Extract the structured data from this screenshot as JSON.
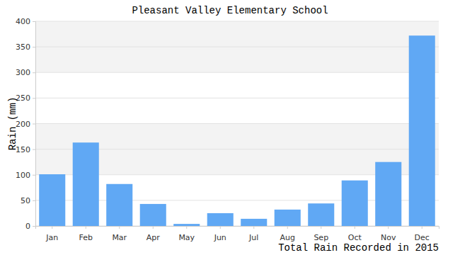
{
  "chart_data": {
    "type": "bar",
    "title": "Pleasant Valley Elementary School",
    "x_label": "Total Rain Recorded in 2015",
    "y_label": "Rain (mm)",
    "categories": [
      "Jan",
      "Feb",
      "Mar",
      "Apr",
      "May",
      "Jun",
      "Jul",
      "Aug",
      "Sep",
      "Oct",
      "Nov",
      "Dec"
    ],
    "values": [
      101,
      163,
      82,
      43,
      4,
      25,
      14,
      32,
      44,
      89,
      125,
      372
    ],
    "color": "#60a8f4",
    "ylim": [
      0,
      400
    ],
    "yticks": [
      0,
      50,
      100,
      150,
      200,
      250,
      300,
      350,
      400
    ],
    "grid": true
  }
}
